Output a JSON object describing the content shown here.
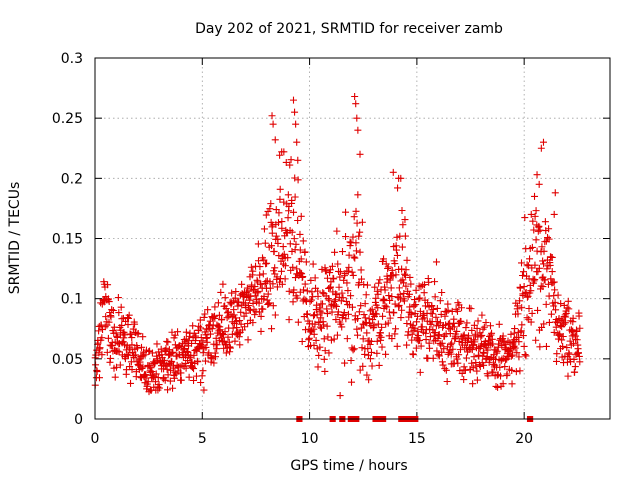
{
  "chart_data": {
    "type": "scatter",
    "title": "Day 202 of 2021, SRMTID for receiver zamb",
    "xlabel": "GPS time / hours",
    "ylabel": "SRMTID / TECUs",
    "xlim": [
      0,
      24
    ],
    "ylim": [
      0,
      0.3
    ],
    "xticks": [
      0,
      5,
      10,
      15,
      20
    ],
    "xtick_labels": [
      "0",
      "5",
      "10",
      "15",
      "20"
    ],
    "yticks": [
      0,
      0.05,
      0.1,
      0.15,
      0.2,
      0.25,
      0.3
    ],
    "ytick_labels": [
      "0",
      "0.05",
      "0.1",
      "0.15",
      "0.2",
      "0.25",
      "0.3"
    ],
    "grid": true,
    "marker": "+",
    "color": "#e00000",
    "profile": [
      [
        0.0,
        0.04,
        0.015
      ],
      [
        0.3,
        0.075,
        0.025
      ],
      [
        0.5,
        0.1,
        0.03
      ],
      [
        0.8,
        0.06,
        0.02
      ],
      [
        1.3,
        0.065,
        0.02
      ],
      [
        2.0,
        0.05,
        0.02
      ],
      [
        3.0,
        0.04,
        0.015
      ],
      [
        4.0,
        0.05,
        0.015
      ],
      [
        5.0,
        0.06,
        0.02
      ],
      [
        6.0,
        0.08,
        0.02
      ],
      [
        7.0,
        0.09,
        0.025
      ],
      [
        7.8,
        0.11,
        0.03
      ],
      [
        8.5,
        0.15,
        0.04
      ],
      [
        9.0,
        0.15,
        0.045
      ],
      [
        9.5,
        0.13,
        0.045
      ],
      [
        10.0,
        0.08,
        0.03
      ],
      [
        10.8,
        0.09,
        0.03
      ],
      [
        11.5,
        0.09,
        0.035
      ],
      [
        12.2,
        0.12,
        0.05
      ],
      [
        12.8,
        0.07,
        0.03
      ],
      [
        13.5,
        0.09,
        0.03
      ],
      [
        14.3,
        0.12,
        0.04
      ],
      [
        14.8,
        0.07,
        0.025
      ],
      [
        15.5,
        0.09,
        0.025
      ],
      [
        16.3,
        0.07,
        0.025
      ],
      [
        17.5,
        0.06,
        0.02
      ],
      [
        18.5,
        0.05,
        0.02
      ],
      [
        19.5,
        0.055,
        0.02
      ],
      [
        20.0,
        0.1,
        0.04
      ],
      [
        20.5,
        0.14,
        0.045
      ],
      [
        21.0,
        0.13,
        0.04
      ],
      [
        21.5,
        0.08,
        0.025
      ],
      [
        22.6,
        0.06,
        0.02
      ]
    ],
    "point_count": 1500,
    "peaks": [
      [
        8.25,
        0.252
      ],
      [
        8.3,
        0.245
      ],
      [
        8.4,
        0.232
      ],
      [
        8.7,
        0.222
      ],
      [
        8.8,
        0.222
      ],
      [
        9.25,
        0.265
      ],
      [
        9.3,
        0.255
      ],
      [
        9.35,
        0.245
      ],
      [
        9.4,
        0.23
      ],
      [
        9.45,
        0.215
      ],
      [
        12.1,
        0.268
      ],
      [
        12.15,
        0.262
      ],
      [
        12.2,
        0.25
      ],
      [
        12.25,
        0.24
      ],
      [
        12.35,
        0.22
      ],
      [
        13.9,
        0.205
      ],
      [
        14.15,
        0.2
      ],
      [
        14.25,
        0.2
      ],
      [
        14.1,
        0.192
      ],
      [
        20.6,
        0.203
      ],
      [
        20.7,
        0.195
      ],
      [
        20.8,
        0.225
      ],
      [
        20.9,
        0.23
      ],
      [
        21.45,
        0.188
      ],
      [
        21.4,
        0.17
      ],
      [
        22.55,
        0.088
      ]
    ],
    "baseline_segments": [
      [
        9.45,
        9.6
      ],
      [
        11.0,
        11.15
      ],
      [
        11.45,
        11.6
      ],
      [
        11.85,
        12.25
      ],
      [
        13.0,
        13.5
      ],
      [
        14.2,
        15.0
      ],
      [
        20.2,
        20.35
      ]
    ]
  }
}
